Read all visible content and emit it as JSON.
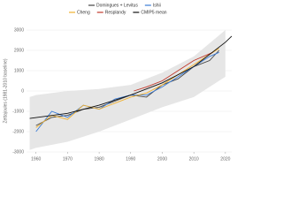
{
  "chart_data": {
    "type": "line",
    "y_label": "Zettajoules (1981-2010 baseline)",
    "xlim": [
      1957,
      2022
    ],
    "xticks": [
      1960,
      1970,
      1980,
      1990,
      2000,
      2010,
      2020
    ],
    "ylim": [
      -3000,
      3000
    ],
    "yticks": [
      3000,
      2000,
      1000,
      0,
      -1000,
      -2000,
      -3000
    ],
    "grid": true,
    "band": {
      "color": "#e6e6e6",
      "x": [
        1958,
        1960,
        1970,
        1980,
        1990,
        2000,
        2010,
        2020
      ],
      "lower": [
        -2900,
        -2800,
        -2500,
        -2000,
        -1400,
        -800,
        -300,
        700
      ],
      "upper": [
        -300,
        -200,
        0,
        100,
        300,
        900,
        1700,
        3000
      ]
    },
    "series": [
      {
        "name": "Domingues + Levitus",
        "color": "#444444",
        "x": [
          1960,
          1965,
          1970,
          1975,
          1980,
          1985,
          1990,
          1995,
          2000,
          2005,
          2010,
          2015,
          2018
        ],
        "values": [
          -1700,
          -1300,
          -1200,
          -900,
          -800,
          -500,
          -200,
          -300,
          300,
          600,
          1200,
          1500,
          2000
        ]
      },
      {
        "name": "Ishii",
        "color": "#3a7bd5",
        "x": [
          1960,
          1965,
          1970,
          1975,
          1980,
          1985,
          1990,
          1995,
          2000,
          2005,
          2010,
          2015,
          2018
        ],
        "values": [
          -2000,
          -1000,
          -1300,
          -700,
          -900,
          -400,
          -200,
          -200,
          200,
          700,
          1200,
          1700,
          1900
        ]
      },
      {
        "name": "Cheng",
        "color": "#f0b030",
        "x": [
          1960,
          1965,
          1970,
          1975,
          1980,
          1985,
          1990,
          1995,
          2000,
          2005,
          2010,
          2015,
          2018
        ],
        "values": [
          -1800,
          -1200,
          -1400,
          -700,
          -900,
          -600,
          -300,
          -100,
          300,
          800,
          1300,
          1800,
          2100
        ]
      },
      {
        "name": "Resplandy",
        "color": "#c0392b",
        "x": [
          1991,
          1995,
          2000,
          2005,
          2010,
          2016
        ],
        "values": [
          0,
          200,
          500,
          1000,
          1500,
          1900
        ]
      },
      {
        "name": "CMIP5 mean",
        "color": "#111111",
        "x": [
          1958,
          1970,
          1980,
          1990,
          2000,
          2010,
          2020,
          2022
        ],
        "values": [
          -1350,
          -1100,
          -700,
          -200,
          400,
          1200,
          2400,
          2700
        ]
      }
    ]
  }
}
